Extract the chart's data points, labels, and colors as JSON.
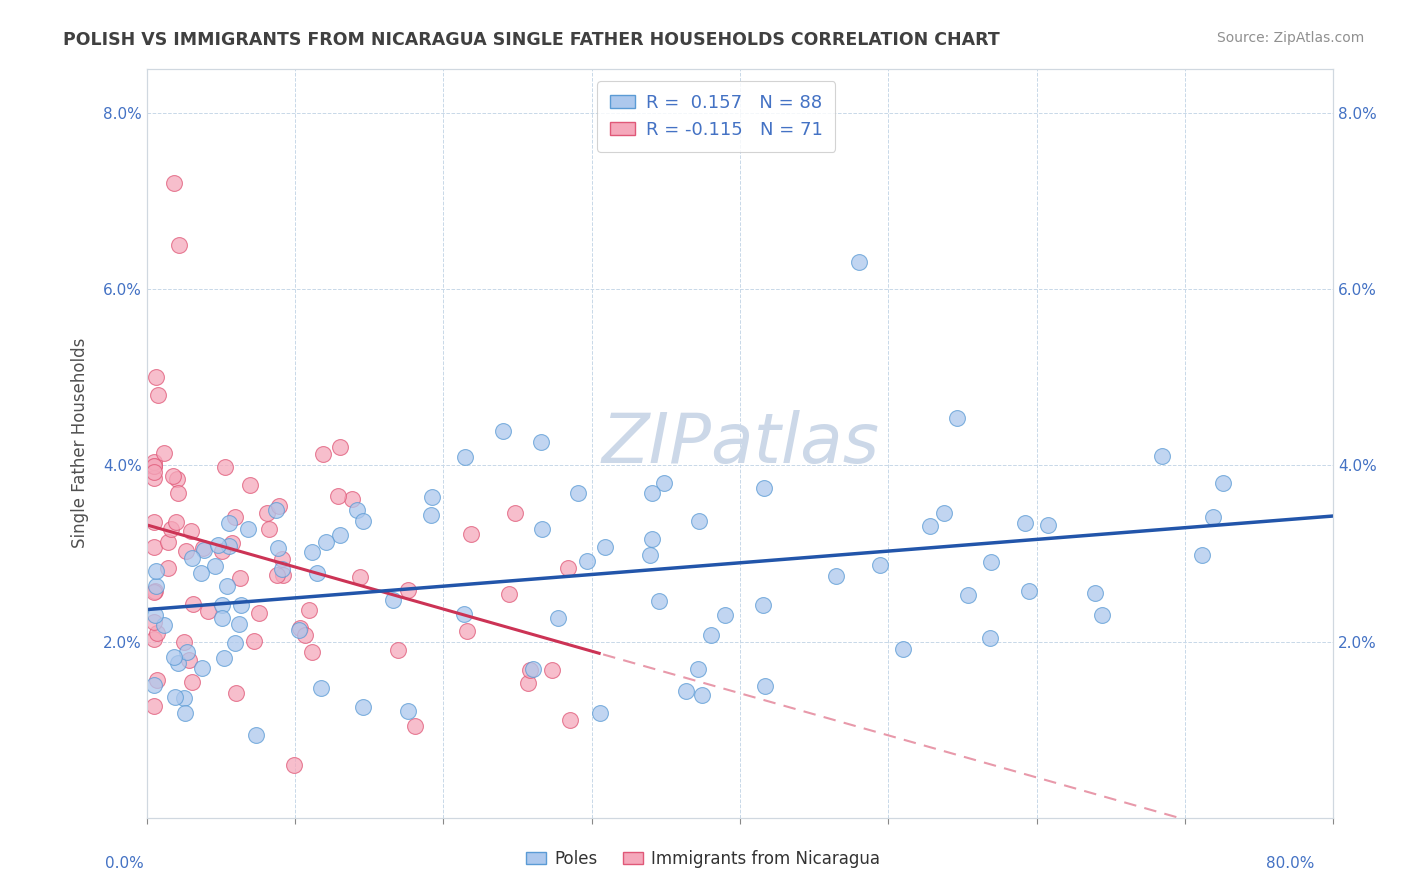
{
  "title": "POLISH VS IMMIGRANTS FROM NICARAGUA SINGLE FATHER HOUSEHOLDS CORRELATION CHART",
  "source": "Source: ZipAtlas.com",
  "ylabel": "Single Father Households",
  "xlim": [
    0,
    0.8
  ],
  "ylim": [
    0,
    0.085
  ],
  "yticks": [
    0.02,
    0.04,
    0.06,
    0.08
  ],
  "ytick_labels": [
    "2.0%",
    "4.0%",
    "6.0%",
    "8.0%"
  ],
  "legend_labels": [
    "Poles",
    "Immigrants from Nicaragua"
  ],
  "poles_color": "#adc8ed",
  "nicaragua_color": "#f5a8bb",
  "poles_edge_color": "#5b9bd5",
  "nicaragua_edge_color": "#e05878",
  "trend_poles_color": "#2255aa",
  "trend_nicaragua_solid_color": "#cc3355",
  "trend_nicaragua_dash_color": "#e899aa",
  "r_poles": 0.157,
  "n_poles": 88,
  "r_nicaragua": -0.115,
  "n_nicaragua": 71,
  "background_color": "#ffffff",
  "grid_color": "#c8d8e8",
  "title_color": "#404040",
  "watermark": "ZIPatlas",
  "watermark_color": "#ccd8e8"
}
